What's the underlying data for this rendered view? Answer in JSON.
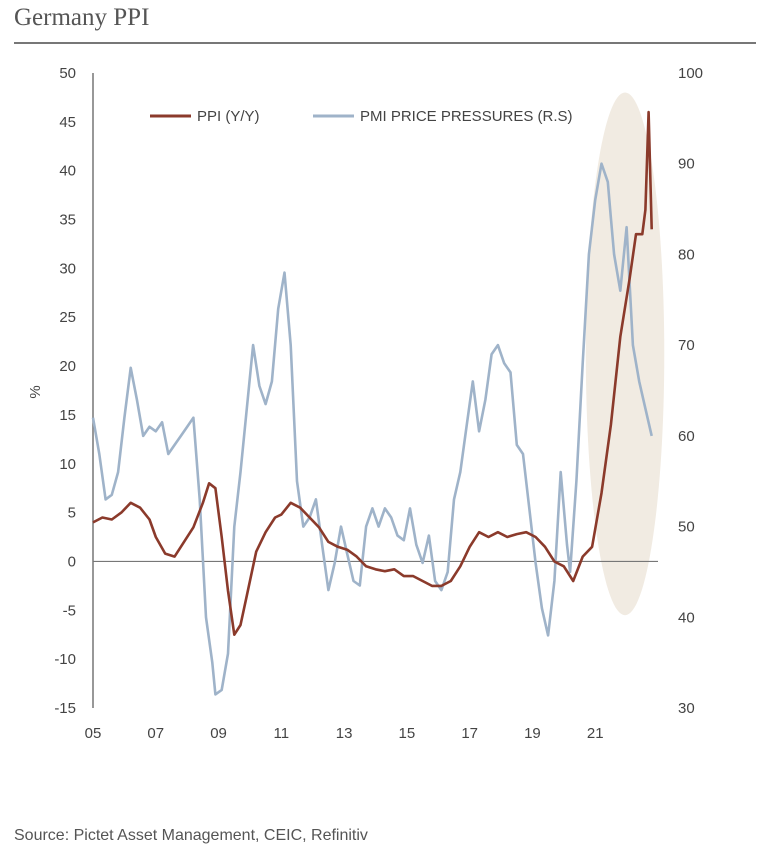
{
  "title": "Germany PPI",
  "source": "Source: Pictet Asset Management, CEIC, Refinitiv",
  "colors": {
    "ppi": "#8b3a2b",
    "pmi": "#9fb3c9",
    "axis": "#777777",
    "highlight": "#f1ebe2",
    "text": "#444444"
  },
  "chart_data": {
    "type": "line",
    "xlabel": "",
    "ylabel": "%",
    "y2label": "",
    "xticks": [
      "05",
      "07",
      "09",
      "11",
      "13",
      "15",
      "17",
      "19",
      "21"
    ],
    "x_tick_values": [
      2005,
      2007,
      2009,
      2011,
      2013,
      2015,
      2017,
      2019,
      2021
    ],
    "xlim": [
      2005,
      2023
    ],
    "ylim": [
      -15,
      50
    ],
    "y2lim": [
      30,
      100
    ],
    "yticks": [
      50,
      45,
      40,
      35,
      30,
      25,
      20,
      15,
      10,
      5,
      0,
      -5,
      -10,
      -15
    ],
    "y2ticks": [
      100,
      90,
      80,
      70,
      60,
      50,
      40,
      30
    ],
    "legend_position": "top",
    "highlight": {
      "x_range": [
        2020.7,
        2023.2
      ],
      "y_range": [
        -5.5,
        48
      ]
    },
    "series": [
      {
        "name": "PPI (Y/Y)",
        "axis": "left",
        "x": [
          2005.0,
          2005.3,
          2005.6,
          2005.9,
          2006.2,
          2006.5,
          2006.8,
          2007.0,
          2007.3,
          2007.6,
          2007.9,
          2008.2,
          2008.5,
          2008.7,
          2008.9,
          2009.1,
          2009.3,
          2009.5,
          2009.7,
          2009.9,
          2010.2,
          2010.5,
          2010.8,
          2011.0,
          2011.3,
          2011.6,
          2011.9,
          2012.2,
          2012.5,
          2012.8,
          2013.1,
          2013.4,
          2013.7,
          2014.0,
          2014.3,
          2014.6,
          2014.9,
          2015.2,
          2015.5,
          2015.8,
          2016.1,
          2016.4,
          2016.7,
          2017.0,
          2017.3,
          2017.6,
          2017.9,
          2018.2,
          2018.5,
          2018.8,
          2019.1,
          2019.4,
          2019.7,
          2020.0,
          2020.3,
          2020.6,
          2020.9,
          2021.2,
          2021.5,
          2021.8,
          2022.1,
          2022.3,
          2022.5,
          2022.6,
          2022.7,
          2022.8
        ],
        "values": [
          4.0,
          4.5,
          4.3,
          5.0,
          6.0,
          5.5,
          4.3,
          2.5,
          0.8,
          0.5,
          2.0,
          3.5,
          6.0,
          8.0,
          7.5,
          2.5,
          -3.0,
          -7.5,
          -6.5,
          -3.5,
          1.0,
          3.0,
          4.5,
          4.8,
          6.0,
          5.5,
          4.5,
          3.5,
          2.0,
          1.5,
          1.2,
          0.5,
          -0.5,
          -0.8,
          -1.0,
          -0.8,
          -1.5,
          -1.5,
          -2.0,
          -2.5,
          -2.5,
          -2.0,
          -0.5,
          1.5,
          3.0,
          2.5,
          3.0,
          2.5,
          2.8,
          3.0,
          2.5,
          1.5,
          0.0,
          -0.5,
          -2.0,
          0.5,
          1.5,
          7.0,
          14.0,
          23.0,
          29.0,
          33.5,
          33.5,
          36.0,
          46.0,
          34.0
        ]
      },
      {
        "name": "PMI PRICE PRESSURES (R.S)",
        "axis": "right",
        "x": [
          2005.0,
          2005.2,
          2005.4,
          2005.6,
          2005.8,
          2006.0,
          2006.2,
          2006.4,
          2006.6,
          2006.8,
          2007.0,
          2007.2,
          2007.4,
          2007.6,
          2007.8,
          2008.0,
          2008.2,
          2008.4,
          2008.6,
          2008.8,
          2008.9,
          2009.1,
          2009.3,
          2009.5,
          2009.7,
          2009.9,
          2010.1,
          2010.3,
          2010.5,
          2010.7,
          2010.9,
          2011.1,
          2011.3,
          2011.5,
          2011.7,
          2011.9,
          2012.1,
          2012.3,
          2012.5,
          2012.7,
          2012.9,
          2013.1,
          2013.3,
          2013.5,
          2013.7,
          2013.9,
          2014.1,
          2014.3,
          2014.5,
          2014.7,
          2014.9,
          2015.1,
          2015.3,
          2015.5,
          2015.7,
          2015.9,
          2016.1,
          2016.3,
          2016.5,
          2016.7,
          2016.9,
          2017.1,
          2017.3,
          2017.5,
          2017.7,
          2017.9,
          2018.1,
          2018.3,
          2018.5,
          2018.7,
          2018.9,
          2019.1,
          2019.3,
          2019.5,
          2019.7,
          2019.9,
          2020.1,
          2020.2,
          2020.4,
          2020.6,
          2020.8,
          2021.0,
          2021.2,
          2021.4,
          2021.5,
          2021.6,
          2021.8,
          2022.0,
          2022.2,
          2022.4,
          2022.6,
          2022.8
        ],
        "values": [
          62.0,
          58.0,
          53.0,
          53.5,
          56.0,
          62.0,
          67.5,
          64.0,
          60.0,
          61.0,
          60.5,
          61.5,
          58.0,
          59.0,
          60.0,
          61.0,
          62.0,
          53.0,
          40.0,
          35.0,
          31.5,
          32.0,
          36.0,
          50.0,
          56.0,
          63.0,
          70.0,
          65.5,
          63.5,
          66.0,
          74.0,
          78.0,
          70.0,
          55.0,
          50.0,
          51.0,
          53.0,
          48.0,
          43.0,
          46.0,
          50.0,
          47.0,
          44.0,
          43.5,
          50.0,
          52.0,
          50.0,
          52.0,
          51.0,
          49.0,
          48.5,
          52.0,
          48.0,
          46.0,
          49.0,
          44.0,
          43.0,
          45.0,
          53.0,
          56.0,
          61.0,
          66.0,
          60.5,
          64.0,
          69.0,
          70.0,
          68.0,
          67.0,
          59.0,
          58.0,
          52.0,
          46.0,
          41.0,
          38.0,
          44.0,
          56.0,
          48.0,
          45.0,
          55.0,
          68.0,
          80.0,
          86.0,
          90.0,
          88.0,
          84.0,
          80.0,
          76.0,
          83.0,
          70.0,
          66.0,
          63.0,
          60.0
        ]
      }
    ]
  }
}
